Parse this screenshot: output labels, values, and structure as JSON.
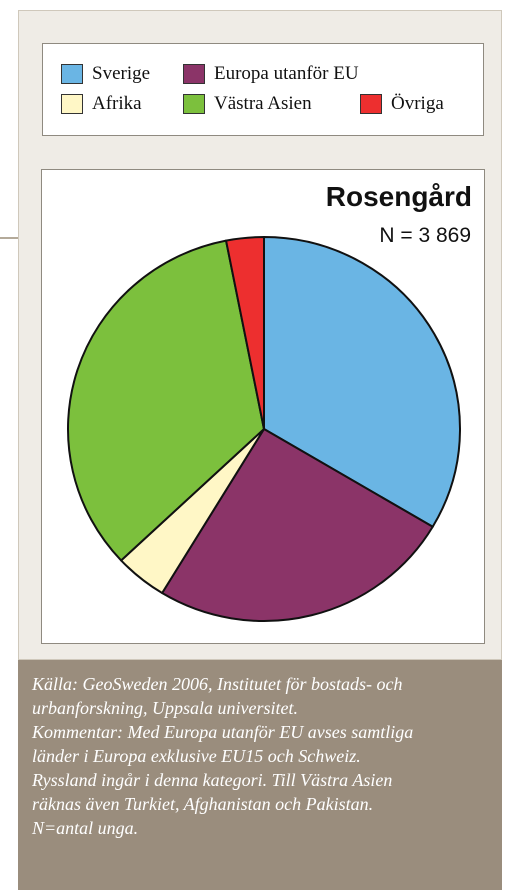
{
  "chart_data": {
    "type": "pie",
    "title": "Rosengård",
    "subtitle": "N = 3 869",
    "categories": [
      "Sverige",
      "Europa utanför EU",
      "Afrika",
      "Västra Asien",
      "Övriga"
    ],
    "values": [
      33.5,
      25.2,
      4.3,
      33.9,
      3.1
    ],
    "colors": [
      "#6ab5e4",
      "#8b3468",
      "#fff7c6",
      "#7cc03d",
      "#ed2f2f"
    ],
    "legend": [
      {
        "label": "Sverige",
        "color": "#6ab5e4"
      },
      {
        "label": "Europa utanför EU",
        "color": "#8b3468"
      },
      {
        "label": "Afrika",
        "color": "#fff7c6"
      },
      {
        "label": "Västra Asien",
        "color": "#7cc03d"
      },
      {
        "label": "Övriga",
        "color": "#ed2f2f"
      }
    ]
  },
  "footnote": [
    "Källa: GeoSweden 2006, Institutet för bostads- och",
    "urbanforskning, Uppsala universitet.",
    "Kommentar: Med Europa utanför EU avses samtliga",
    "länder i Europa exklusive EU15 och Schweiz.",
    "Ryssland ingår i denna kategori. Till Västra Asien",
    "räknas även Turkiet, Afghanistan och Pakistan.",
    "N=antal unga."
  ],
  "colors": {
    "panel_background": "#efece6",
    "footnote_background": "#9a8d7d"
  }
}
